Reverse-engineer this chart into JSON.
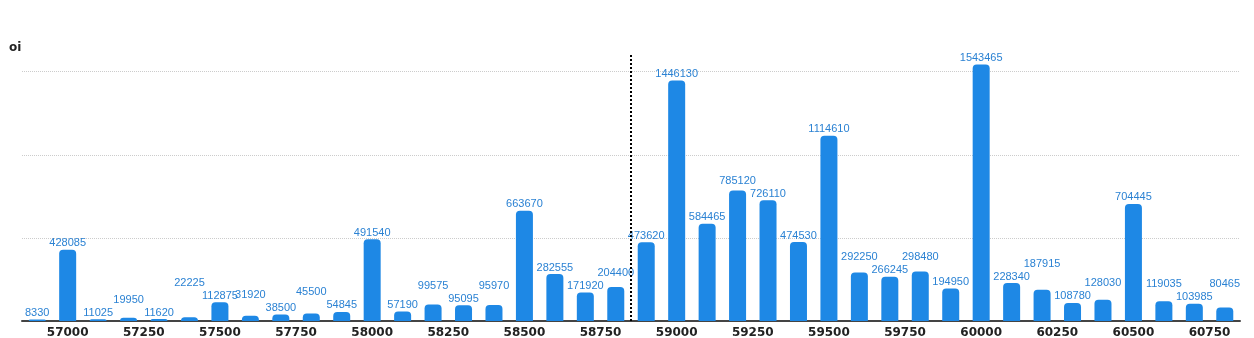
{
  "chart_data": {
    "type": "bar",
    "ylabel": "oi",
    "x": [
      56900,
      57000,
      57100,
      57200,
      57300,
      57400,
      57500,
      57600,
      57700,
      57800,
      57900,
      58000,
      58100,
      58200,
      58300,
      58400,
      58500,
      58600,
      58700,
      58800,
      58900,
      59000,
      59100,
      59200,
      59300,
      59400,
      59500,
      59600,
      59700,
      59800,
      59900,
      60000,
      60100,
      60200,
      60300,
      60400,
      60500,
      60600,
      60700,
      60800
    ],
    "series": [
      {
        "color": "#1e88e5",
        "values": [
          8330,
          428085,
          11025,
          19950,
          11620,
          22225,
          112875,
          31920,
          38500,
          45500,
          54845,
          491540,
          57190,
          99575,
          95095,
          95970,
          663670,
          282555,
          171920,
          204400,
          473620,
          1446130,
          584465,
          785120,
          726110,
          474530,
          1114610,
          292250,
          266245,
          298480,
          194950,
          1543465,
          228340,
          187915,
          108780,
          128030,
          704445,
          119035,
          103985,
          80465
        ]
      }
    ],
    "xlim": [
      56850,
      60850
    ],
    "xticks": [
      57000,
      57250,
      57500,
      57750,
      58000,
      58250,
      58500,
      58750,
      59000,
      59250,
      59500,
      59750,
      60000,
      60250,
      60500,
      60750
    ],
    "ylim": [
      0,
      1600000
    ],
    "yticks": [
      {
        "value": 0,
        "label": null
      },
      {
        "value": 500000,
        "label": null
      },
      {
        "value": 1000000,
        "label": null
      },
      {
        "value": 1500000,
        "label": null
      }
    ],
    "tick_labels": "x",
    "grid": "y",
    "data_labels": true,
    "ref_lines": [
      {
        "axis": "x",
        "value": 58850,
        "label": null,
        "color": "#000000",
        "line_style": "dotted"
      }
    ]
  }
}
